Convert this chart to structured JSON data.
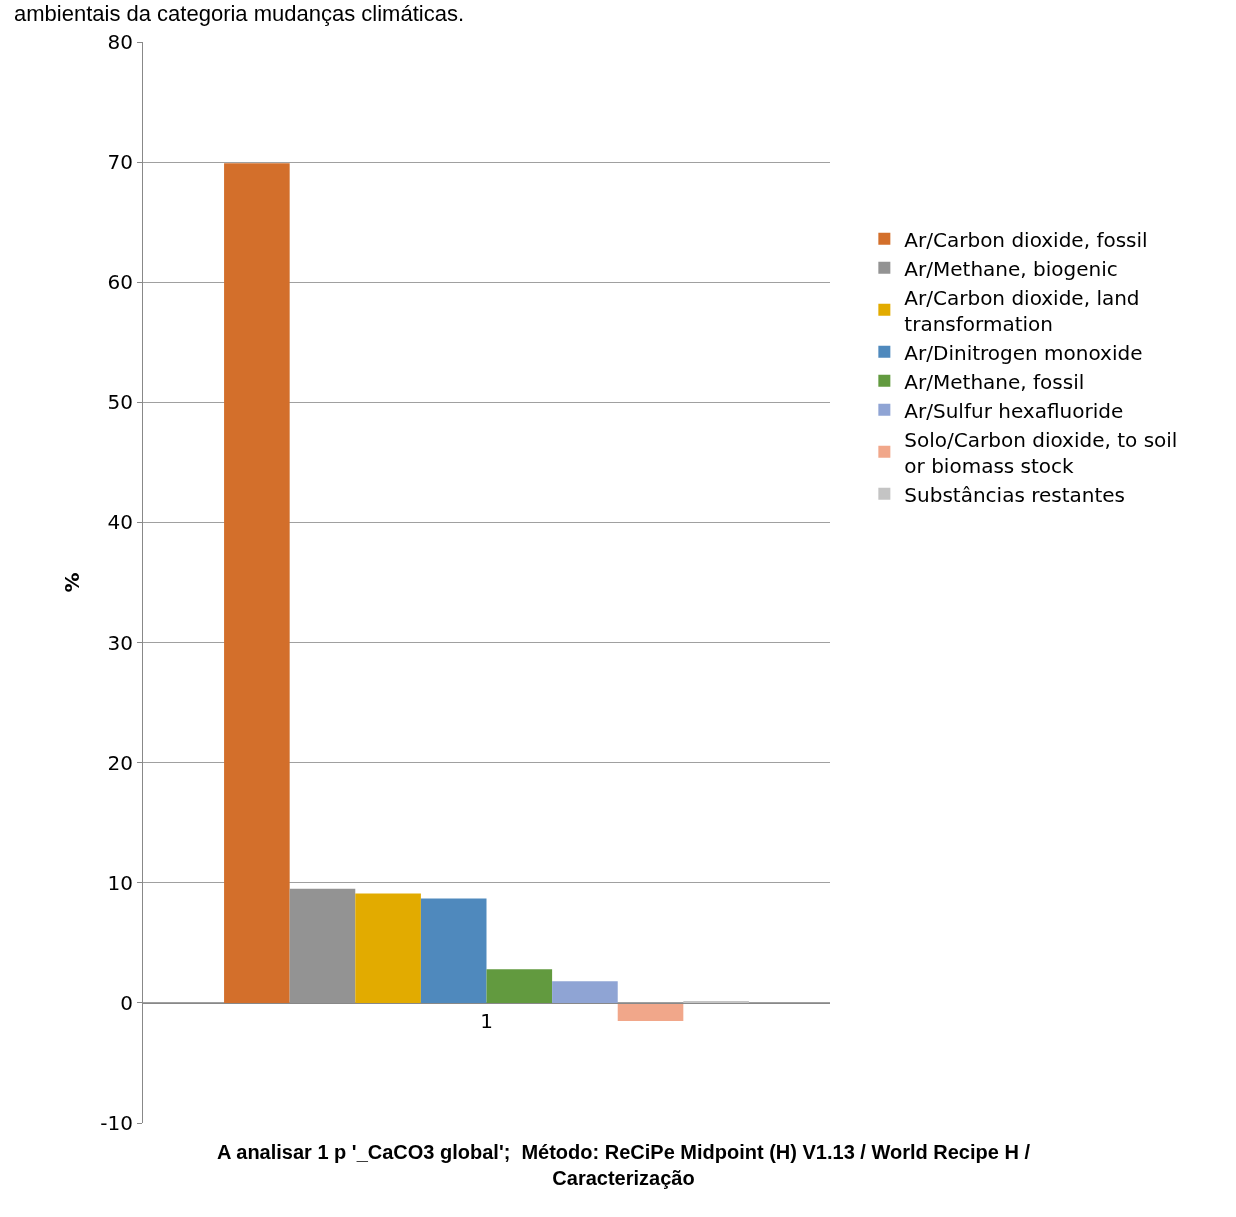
{
  "chart_data": {
    "type": "bar",
    "categories": [
      "1"
    ],
    "series": [
      {
        "name": "Ar/Carbon dioxide, fossil",
        "color": "#d36f2b",
        "values": [
          69.9
        ]
      },
      {
        "name": "Ar/Methane, biogenic",
        "color": "#939393",
        "values": [
          9.5
        ]
      },
      {
        "name": "Ar/Carbon dioxide, land transformation",
        "color": "#e2ab00",
        "values": [
          9.1
        ]
      },
      {
        "name": "Ar/Dinitrogen monoxide",
        "color": "#4f89bd",
        "values": [
          8.7
        ]
      },
      {
        "name": "Ar/Methane, fossil",
        "color": "#629a3f",
        "values": [
          2.8
        ]
      },
      {
        "name": "Ar/Sulfur hexafluoride",
        "color": "#8fa4d4",
        "values": [
          1.8
        ]
      },
      {
        "name": "Solo/Carbon dioxide, to soil or biomass stock",
        "color": "#f1a78a",
        "values": [
          -1.5
        ]
      },
      {
        "name": "Substâncias restantes",
        "color": "#c4c4c4",
        "values": [
          0.1
        ]
      }
    ],
    "xlabel": "A analisar 1 p '_CaCO3 global';  Método: ReCiPe Midpoint (H) V1.13 / World Recipe H / Caracterização",
    "ylabel": "%",
    "annotations": [
      "ambientais da categoria mudanças climáticas."
    ],
    "ylim": [
      -10,
      80
    ],
    "yticks": [
      -10,
      0,
      10,
      20,
      30,
      40,
      50,
      60,
      70,
      80
    ],
    "grid": "y",
    "legend": "right"
  }
}
